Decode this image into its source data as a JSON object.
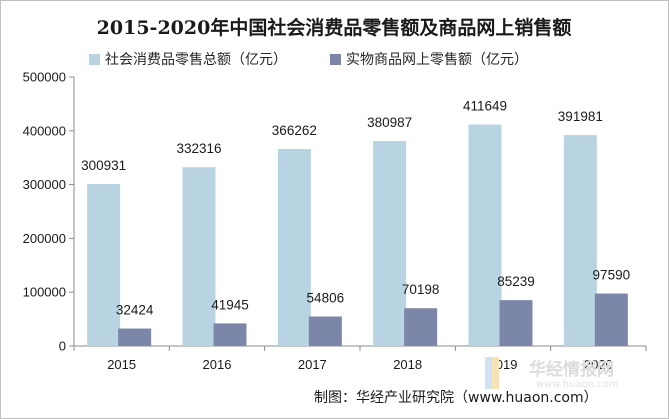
{
  "chart_data": {
    "type": "bar",
    "title": "2015-2020年中国社会消费品零售额及商品网上销售额",
    "categories": [
      "2015",
      "2016",
      "2017",
      "2018",
      "2019",
      "2020"
    ],
    "series": [
      {
        "name": "社会消费品零售总额（亿元）",
        "color": "#b8d4e3",
        "values": [
          300931,
          332316,
          366262,
          380987,
          411649,
          391981
        ]
      },
      {
        "name": "实物商品网上零售额（亿元）",
        "color": "#7b86a8",
        "values": [
          32424,
          41945,
          54806,
          70198,
          85239,
          97590
        ]
      }
    ],
    "ylim": [
      0,
      500000
    ],
    "yticks": [
      "0",
      "100000",
      "200000",
      "300000",
      "400000",
      "500000"
    ],
    "grid": false,
    "legend": "top-left"
  },
  "source": "制图：华经产业研究院（www.huaon.com）",
  "watermark": {
    "name": "华经情报网",
    "url": "www.huaon.com"
  }
}
